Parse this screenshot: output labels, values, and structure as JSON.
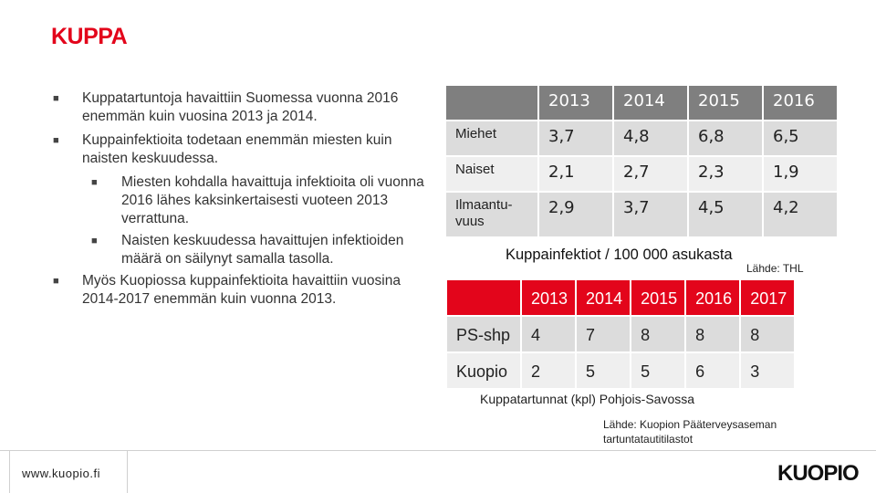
{
  "title": "KUPPA",
  "bullets": [
    "Kuppatartuntoja havaittiin Suomessa vuonna 2016 enemmän kuin vuosina 2013 ja 2014.",
    "Kuppainfektioita todetaan enemmän miesten kuin naisten keskuudessa.",
    "Myös Kuopiossa kuppainfektioita havaittiin vuosina 2014-2017 enemmän kuin vuonna 2013."
  ],
  "sub_bullets": [
    "Miesten kohdalla havaittuja infektioita oli vuonna 2016 lähes kaksinkertaisesti vuoteen 2013 verrattuna.",
    "Naisten keskuudessa havaittujen infektioiden määrä on säilynyt samalla tasolla."
  ],
  "table1": {
    "headers": [
      "2013",
      "2014",
      "2015",
      "2016"
    ],
    "rows": [
      {
        "label": "Miehet",
        "values": [
          "3,7",
          "4,8",
          "6,8",
          "6,5"
        ]
      },
      {
        "label": "Naiset",
        "values": [
          "2,1",
          "2,7",
          "2,3",
          "1,9"
        ]
      },
      {
        "label": "Ilmaantu-vuus",
        "values": [
          "2,9",
          "3,7",
          "4,5",
          "4,2"
        ]
      }
    ],
    "caption": "Kuppainfektiot / 100 000 asukasta",
    "source": "Lähde: THL"
  },
  "table2": {
    "headers": [
      "2013",
      "2014",
      "2015",
      "2016",
      "2017"
    ],
    "rows": [
      {
        "label": "PS-shp",
        "values": [
          "4",
          "7",
          "8",
          "8",
          "8"
        ]
      },
      {
        "label": "Kuopio",
        "values": [
          "2",
          "5",
          "5",
          "6",
          "3"
        ]
      }
    ],
    "caption": "Kuppatartunnat (kpl) Pohjois-Savossa",
    "source": "Lähde: Kuopion Pääterveysaseman tartuntatautitilastot"
  },
  "footer": {
    "url": "www.kuopio.fi",
    "logo": "KUOPIO"
  },
  "colors": {
    "accent": "#e3051b",
    "header_gray": "#7f7f7f",
    "cell_dark": "#dcdcdc",
    "cell_light": "#efefef"
  }
}
